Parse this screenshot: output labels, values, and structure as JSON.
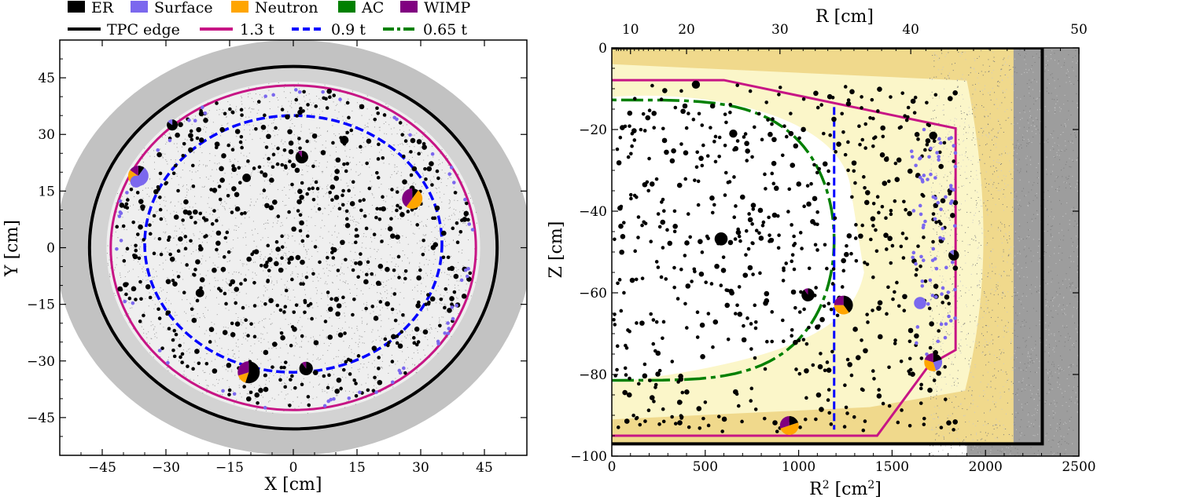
{
  "legend": {
    "types": [
      {
        "label": "ER",
        "color": "#000000"
      },
      {
        "label": "Surface",
        "color": "#7b68ee"
      },
      {
        "label": "Neutron",
        "color": "#ffa500"
      },
      {
        "label": "AC",
        "color": "#008000"
      },
      {
        "label": "WIMP",
        "color": "#800080"
      }
    ],
    "boundaries": [
      {
        "label": "TPC edge",
        "color": "#000000",
        "style": "solid"
      },
      {
        "label": "1.3 t",
        "color": "#c71585",
        "style": "solid"
      },
      {
        "label": "0.9 t",
        "color": "#0000ff",
        "style": "dashed"
      },
      {
        "label": "0.65 t",
        "color": "#008000",
        "style": "dashdot"
      }
    ]
  },
  "chart_data": [
    {
      "type": "scatter",
      "panel": "left",
      "xlabel": "X [cm]",
      "ylabel": "Y [cm]",
      "xlim": [
        -55,
        55
      ],
      "ylim": [
        -55,
        55
      ],
      "xticks": [
        -45,
        -30,
        -15,
        0,
        15,
        30,
        45
      ],
      "yticks": [
        -45,
        -30,
        -15,
        0,
        15,
        30,
        45
      ],
      "tick_labels_x": [
        "−45",
        "−30",
        "−15",
        "0",
        "15",
        "30",
        "45"
      ],
      "tick_labels_y": [
        "−45",
        "−30",
        "−15",
        "0",
        "15",
        "30",
        "45"
      ],
      "boundaries": [
        {
          "name": "TPC edge",
          "radius": 48,
          "color": "#000000"
        },
        {
          "name": "1.3 t",
          "radius_x": 43,
          "radius_y": 43,
          "color": "#c71585"
        },
        {
          "name": "0.9 t",
          "center_y": 1,
          "radius_x": 35,
          "radius_y": 34,
          "color": "#0000ff"
        }
      ],
      "background": "gray calibration events filling the TPC volume",
      "small_er_points_count": 600,
      "surface_points_count": 60,
      "pie_events": [
        {
          "x": -28.5,
          "y": 32.5,
          "r": 1.3,
          "fractions": {
            "ER": 0.85,
            "Surface": 0.15
          }
        },
        {
          "x": -36.5,
          "y": 19.0,
          "r": 2.4,
          "fractions": {
            "ER": 0.1,
            "Surface": 0.55,
            "Neutron": 0.2,
            "WIMP": 0.15
          }
        },
        {
          "x": -37.0,
          "y": 17.5,
          "r": 1.4,
          "fractions": {
            "Surface": 1.0
          }
        },
        {
          "x": 2.0,
          "y": 24.0,
          "r": 1.5,
          "fractions": {
            "ER": 0.9,
            "WIMP": 0.1
          }
        },
        {
          "x": 28.0,
          "y": 13.0,
          "r": 2.4,
          "fractions": {
            "ER": 0.1,
            "Neutron": 0.5,
            "WIMP": 0.4
          }
        },
        {
          "x": -10.5,
          "y": -33.0,
          "r": 2.6,
          "fractions": {
            "ER": 0.55,
            "Neutron": 0.15,
            "WIMP": 0.3
          }
        },
        {
          "x": 3.0,
          "y": -32.0,
          "r": 1.6,
          "fractions": {
            "ER": 0.9,
            "WIMP": 0.1
          }
        },
        {
          "x": -22.0,
          "y": -12.0,
          "r": 1.0,
          "fractions": {
            "ER": 1.0
          }
        },
        {
          "x": -11.0,
          "y": 18.5,
          "r": 1.0,
          "fractions": {
            "ER": 1.0
          }
        },
        {
          "x": 12.0,
          "y": 28.5,
          "r": 1.0,
          "fractions": {
            "ER": 1.0
          }
        }
      ]
    },
    {
      "type": "scatter",
      "panel": "right",
      "xlabel": "R² [cm²]",
      "ylabel": "Z [cm]",
      "top_xlabel": "R [cm]",
      "xlim": [
        0,
        2500
      ],
      "ylim": [
        -100,
        0
      ],
      "xticks": [
        0,
        500,
        1000,
        1500,
        2000,
        2500
      ],
      "yticks": [
        -100,
        -80,
        -60,
        -40,
        -20,
        0
      ],
      "tick_labels_x": [
        "0",
        "500",
        "1000",
        "1500",
        "2000",
        "2500"
      ],
      "tick_labels_y": [
        "−100",
        "−80",
        "−60",
        "−40",
        "−20",
        "0"
      ],
      "top_ticks": [
        10,
        20,
        30,
        40,
        50
      ],
      "tick_labels_top": [
        "10",
        "20",
        "30",
        "40",
        "50"
      ],
      "tpc_edge": {
        "r2_max": 2304,
        "z_min": -97,
        "z_max": 0
      },
      "boundary_1p3t": [
        [
          0,
          -7.9
        ],
        [
          600,
          -7.9
        ],
        [
          1840,
          -19.7
        ],
        [
          1840,
          -74
        ],
        [
          1700,
          -77.6
        ],
        [
          1420,
          -95
        ],
        [
          0,
          -95
        ]
      ],
      "boundary_0p9t_r2": 1190,
      "boundary_0p9t_z": [
        -14.5,
        -93.5
      ],
      "boundary_0p65t": {
        "r2_max": 1190,
        "z_top": -12.8,
        "z_bottom": -81.5,
        "z_center": -47.1
      },
      "small_er_points_count": 650,
      "surface_points_count": 80,
      "pie_events": [
        {
          "x": 585,
          "y": -46.8,
          "r": 1.6,
          "fractions": {
            "ER": 1.0
          }
        },
        {
          "x": 1050,
          "y": -60.5,
          "r": 1.6,
          "fractions": {
            "ER": 0.9,
            "WIMP": 0.1
          }
        },
        {
          "x": 1240,
          "y": -63.0,
          "r": 2.3,
          "fractions": {
            "ER": 0.4,
            "Neutron": 0.35,
            "WIMP": 0.25
          }
        },
        {
          "x": 1650,
          "y": -62.5,
          "r": 1.5,
          "fractions": {
            "Surface": 1.0
          }
        },
        {
          "x": 1720,
          "y": -77.0,
          "r": 2.2,
          "fractions": {
            "ER": 0.2,
            "Surface": 0.25,
            "Neutron": 0.35,
            "WIMP": 0.2
          }
        },
        {
          "x": 950,
          "y": -92.5,
          "r": 2.3,
          "fractions": {
            "ER": 0.2,
            "Neutron": 0.5,
            "WIMP": 0.3
          }
        },
        {
          "x": 1830,
          "y": -50.8,
          "r": 1.3,
          "fractions": {
            "ER": 0.85,
            "Surface": 0.15
          }
        },
        {
          "x": 1720,
          "y": -21.5,
          "r": 1.0,
          "fractions": {
            "ER": 1.0
          }
        },
        {
          "x": 650,
          "y": -21.0,
          "r": 1.0,
          "fractions": {
            "ER": 1.0
          }
        },
        {
          "x": 450,
          "y": -9.0,
          "r": 1.0,
          "fractions": {
            "ER": 1.0
          }
        }
      ]
    }
  ]
}
